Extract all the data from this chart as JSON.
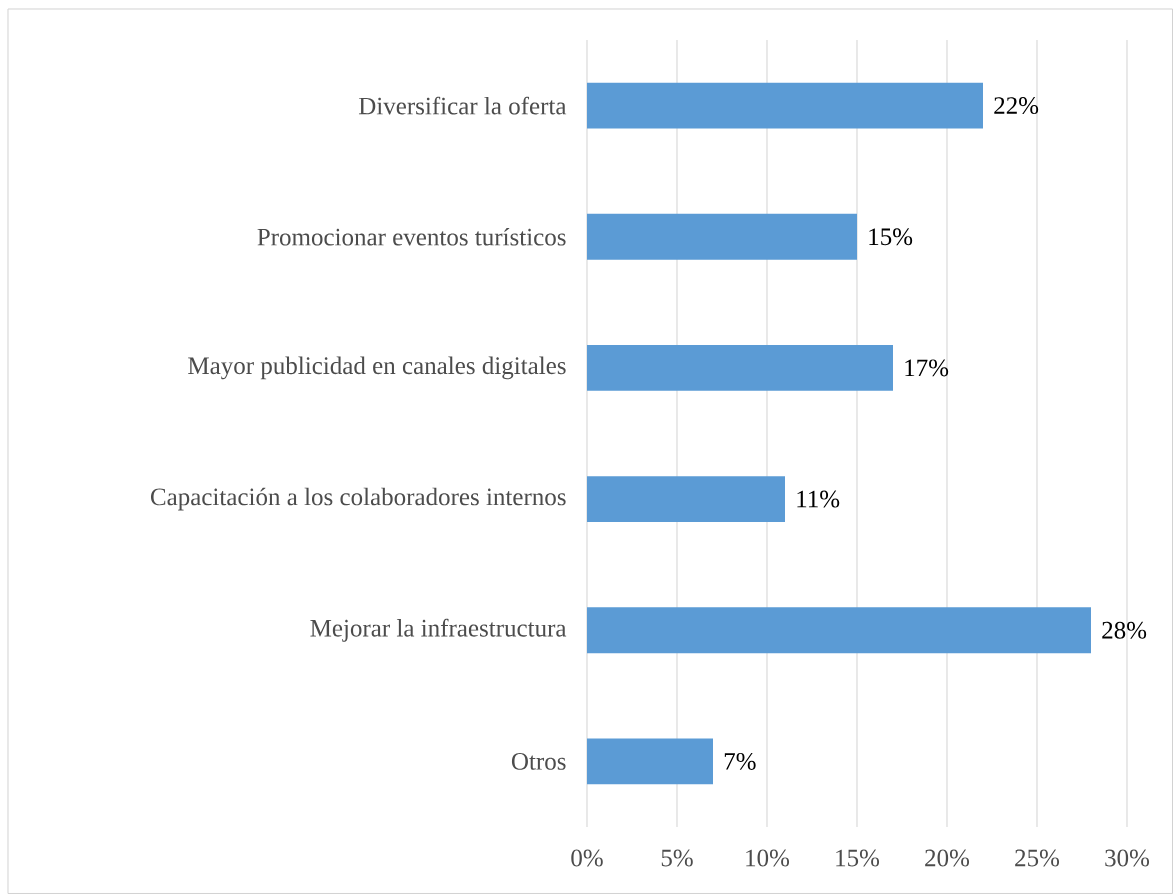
{
  "chart_data": {
    "type": "bar",
    "orientation": "horizontal",
    "categories": [
      "Diversificar la oferta",
      "Promocionar eventos turísticos",
      "Mayor publicidad en canales digitales",
      "Capacitación a los colaboradores internos",
      "Mejorar la infraestructura",
      "Otros"
    ],
    "values": [
      22,
      15,
      17,
      11,
      28,
      7
    ],
    "value_labels": [
      "22%",
      "15%",
      "17%",
      "11%",
      "28%",
      "7%"
    ],
    "color": "#5b9bd5",
    "xlim": [
      0,
      30
    ],
    "xticks": [
      {
        "value": 0,
        "label": "0%"
      },
      {
        "value": 5,
        "label": "5%"
      },
      {
        "value": 10,
        "label": "10%"
      },
      {
        "value": 15,
        "label": "15%"
      },
      {
        "value": 20,
        "label": "20%"
      },
      {
        "value": 25,
        "label": "25%"
      },
      {
        "value": 30,
        "label": "30%"
      }
    ],
    "grid": "x"
  }
}
